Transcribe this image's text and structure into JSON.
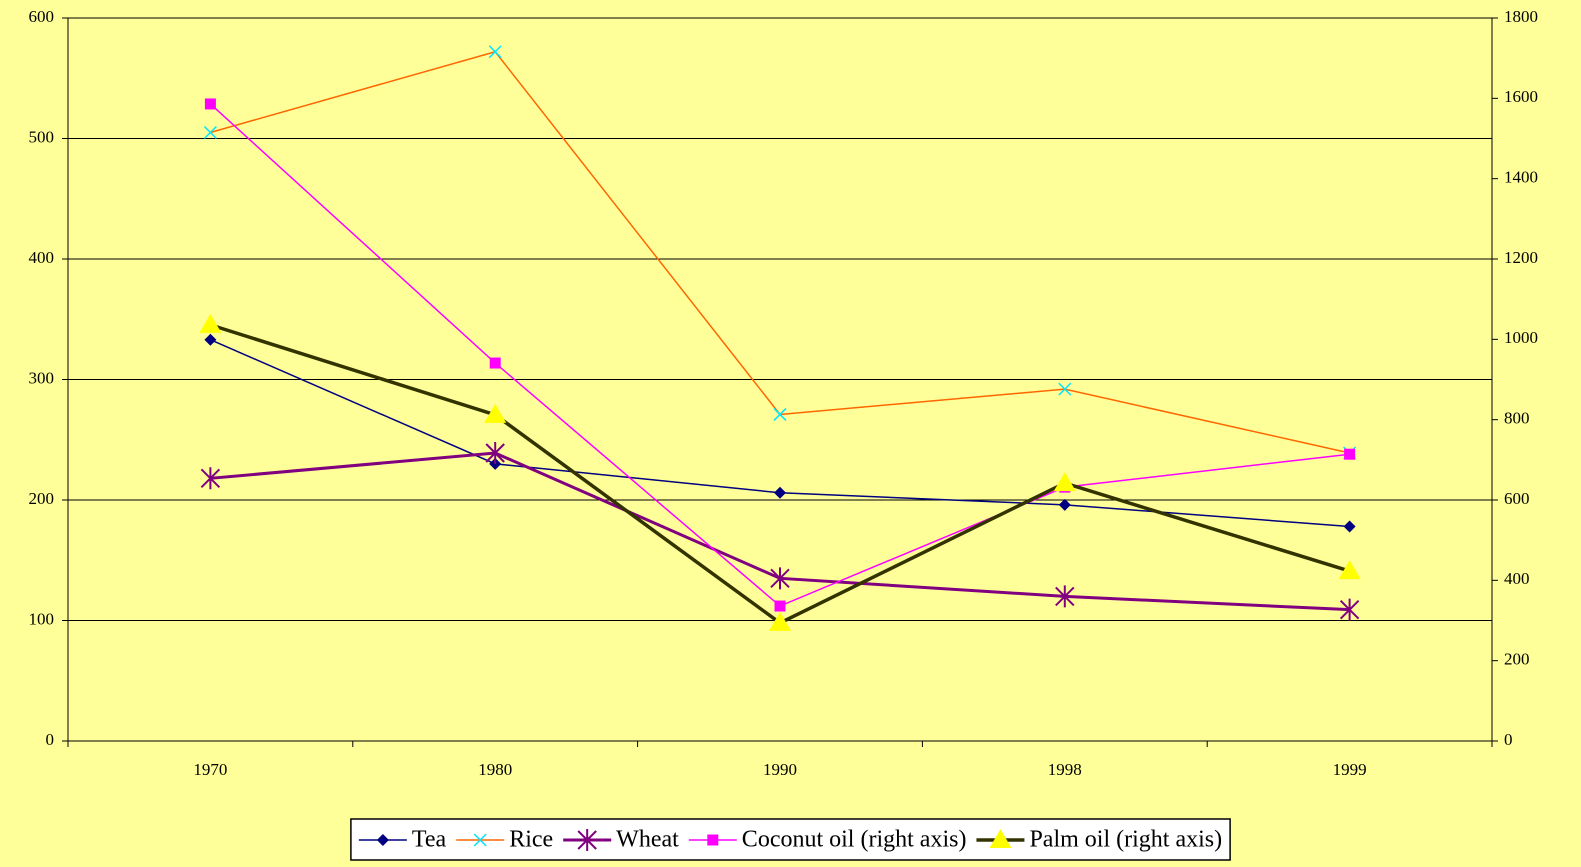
{
  "chart_data": {
    "type": "line",
    "categories": [
      "1970",
      "1980",
      "1990",
      "1998",
      "1999"
    ],
    "series": [
      {
        "name": "Tea",
        "color": "#000080",
        "marker_color": "#000080",
        "marker": "diamond",
        "values": [
          333,
          230,
          206,
          196,
          178
        ]
      },
      {
        "name": "Rice",
        "color": "#ff6600",
        "marker_color": "#00e5ff",
        "marker": "x",
        "values": [
          505,
          572,
          271,
          292,
          239
        ]
      },
      {
        "name": "Wheat",
        "color": "#800080",
        "marker_color": "#800080",
        "marker": "star",
        "values": [
          218,
          239,
          135,
          120,
          109
        ]
      },
      {
        "name": "Coconut oil (right axis)",
        "color": "#ff00ff",
        "marker_color": "#ff00ff",
        "marker": "square",
        "axis": "y2",
        "values": [
          1586,
          941,
          336,
          632,
          714
        ]
      },
      {
        "name": "Palm oil (right axis)",
        "color": "#333300",
        "marker_color": "#ffff00",
        "marker": "triangle",
        "axis": "y2",
        "values": [
          1036,
          812,
          294,
          642,
          423
        ]
      }
    ],
    "ylim": [
      0,
      600
    ],
    "yticks": [
      0,
      100,
      200,
      300,
      400,
      500,
      600
    ],
    "y2lim": [
      0,
      1800
    ],
    "y2ticks": [
      0,
      200,
      400,
      600,
      800,
      1000,
      1200,
      1400,
      1600,
      1800
    ],
    "grid": true,
    "legend": "bottom",
    "background": "#ffff99"
  }
}
